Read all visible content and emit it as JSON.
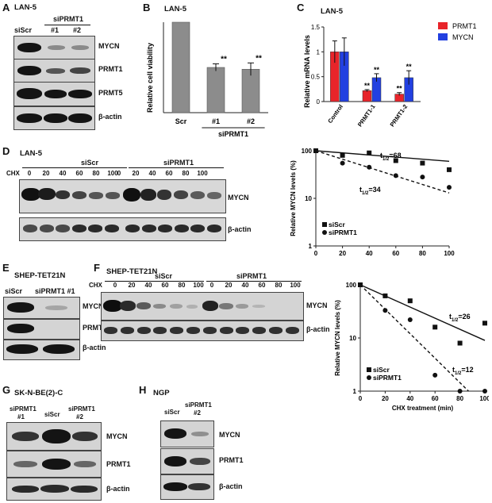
{
  "panels": {
    "A": {
      "letter": "A",
      "cell": "LAN-5",
      "group": "siPRMT1",
      "lanes": [
        "siScr",
        "#1",
        "#2"
      ],
      "blots": [
        "MYCN",
        "PRMT1",
        "PRMT5",
        "β-actin"
      ]
    },
    "B": {
      "letter": "B",
      "cell": "LAN-5"
    },
    "C": {
      "letter": "C",
      "cell": "LAN-5"
    },
    "D": {
      "letter": "D",
      "cell": "LAN-5",
      "group1": "siScr",
      "group2": "siPRMT1",
      "chx": "CHX",
      "times": [
        "0",
        "20",
        "40",
        "60",
        "80",
        "100"
      ],
      "blots": [
        "MYCN",
        "β-actin"
      ]
    },
    "E": {
      "letter": "E",
      "cell": "SHEP-TET21N",
      "lanes": [
        "siScr",
        "siPRMT1 #1"
      ],
      "blots": [
        "MYCN",
        "PRMT1",
        "β-actin"
      ]
    },
    "F": {
      "letter": "F",
      "cell": "SHEP-TET21N",
      "group1": "siScr",
      "group2": "siPRMT1",
      "chx": "CHX",
      "times": [
        "0",
        "20",
        "40",
        "60",
        "80",
        "100"
      ],
      "blots": [
        "MYCN",
        "β-actin"
      ]
    },
    "G": {
      "letter": "G",
      "cell": "SK-N-BE(2)-C",
      "lane1a": "siPRMT1",
      "lane1b": "#1",
      "lane2": "siScr",
      "lane3a": "siPRMT1",
      "lane3b": "#2",
      "blots": [
        "MYCN",
        "PRMT1",
        "β-actin"
      ]
    },
    "H": {
      "letter": "H",
      "cell": "NGP",
      "lane1": "siScr",
      "lane2a": "siPRMT1",
      "lane2b": "#2",
      "blots": [
        "MYCN",
        "PRMT1",
        "β-actin"
      ]
    }
  },
  "chart_data": [
    {
      "id": "B",
      "type": "bar",
      "categories": [
        "Scr",
        "#1",
        "#2"
      ],
      "group_label": "siPRMT1",
      "values": [
        1.0,
        0.5,
        0.48
      ],
      "errors": [
        0,
        0.04,
        0.07
      ],
      "significance": [
        "",
        "**",
        "**"
      ],
      "ylabel": "Relative cell viability",
      "ylim": [
        0,
        1
      ],
      "color": "#8c8c8c"
    },
    {
      "id": "C",
      "type": "bar",
      "categories": [
        "Control",
        "PRMT1-1",
        "PRMT1-2"
      ],
      "series": [
        {
          "name": "PRMT1",
          "values": [
            1.0,
            0.22,
            0.15
          ],
          "errors": [
            0.22,
            0.02,
            0.03
          ],
          "significance": [
            "",
            "**",
            "**"
          ],
          "color": "#e8242a"
        },
        {
          "name": "MYCN",
          "values": [
            1.0,
            0.48,
            0.48
          ],
          "errors": [
            0.28,
            0.08,
            0.14
          ],
          "significance": [
            "",
            "**",
            "**"
          ],
          "color": "#2240e0"
        }
      ],
      "ylabel": "Relative mRNA levels",
      "ylim": [
        0,
        1.5
      ],
      "yticks": [
        "0",
        "0.5",
        "1",
        "1.5"
      ],
      "legend": "top-right"
    },
    {
      "id": "D",
      "type": "scatter",
      "scale": "log",
      "xlabel": "CHX treatment (min)",
      "ylabel": "Relative MYCN levels (%)",
      "xlim": [
        0,
        100
      ],
      "ylim": [
        1,
        100
      ],
      "xticks": [
        "0",
        "20",
        "40",
        "60",
        "80",
        "100"
      ],
      "yticks": [
        "1",
        "10",
        "100"
      ],
      "series": [
        {
          "name": "siScr",
          "marker": "square",
          "x": [
            0,
            20,
            40,
            60,
            80,
            100
          ],
          "y": [
            100,
            80,
            90,
            62,
            55,
            40
          ],
          "fit": [
            100,
            60
          ],
          "dashed": false,
          "halflife": "68"
        },
        {
          "name": "siPRMT1",
          "marker": "circle",
          "x": [
            0,
            20,
            40,
            60,
            80,
            100
          ],
          "y": [
            100,
            55,
            45,
            30,
            28,
            17
          ],
          "fit": [
            100,
            13
          ],
          "dashed": true,
          "halflife": "34"
        }
      ],
      "t_label": "t",
      "t_sub": "1/2",
      "legend": "bottom-left"
    },
    {
      "id": "F",
      "type": "scatter",
      "scale": "log",
      "xlabel": "CHX treatment (min)",
      "ylabel": "Relative MYCN levels (%)",
      "xlim": [
        0,
        100
      ],
      "ylim": [
        1,
        100
      ],
      "xticks": [
        "0",
        "20",
        "40",
        "60",
        "80",
        "100"
      ],
      "yticks": [
        "1",
        "10",
        "100"
      ],
      "series": [
        {
          "name": "siScr",
          "marker": "square",
          "x": [
            0,
            20,
            40,
            60,
            80,
            100
          ],
          "y": [
            100,
            62,
            50,
            16,
            8,
            19
          ],
          "fit": [
            100,
            9
          ],
          "dashed": false,
          "halflife": "26"
        },
        {
          "name": "siPRMT1",
          "marker": "circle",
          "x": [
            0,
            20,
            40,
            60,
            80,
            100
          ],
          "y": [
            100,
            33,
            22,
            2,
            1,
            1
          ],
          "fit": [
            100,
            0.5
          ],
          "dashed": true,
          "halflife": "12"
        }
      ],
      "t_label": "t",
      "t_sub": "1/2",
      "legend": "bottom-left"
    }
  ]
}
